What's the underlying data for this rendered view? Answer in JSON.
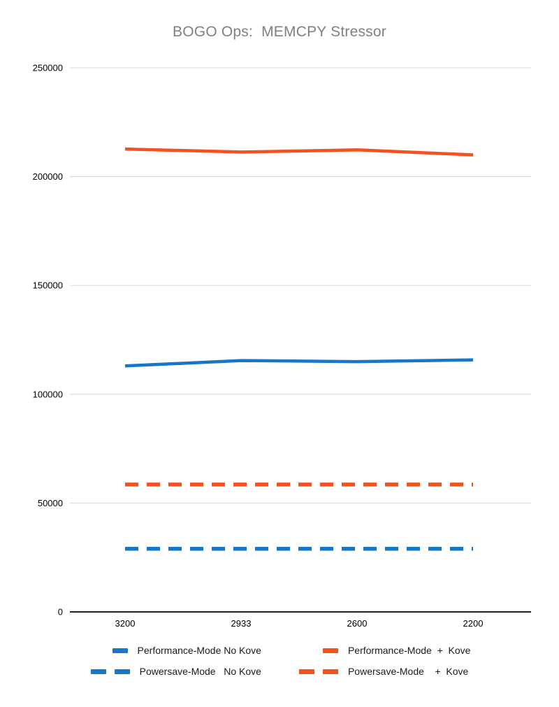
{
  "chart_data": {
    "type": "line",
    "title": "BOGO Ops:  MEMCPY Stressor",
    "title_color": "#808080",
    "xlabel": "",
    "ylabel": "",
    "categories": [
      "3200",
      "2933",
      "2600",
      "2200"
    ],
    "series": [
      {
        "name": "Performance-Mode No Kove",
        "color": "#1776C8",
        "style": "solid",
        "values": [
          113000,
          115500,
          115000,
          115800
        ]
      },
      {
        "name": "Performance-Mode  +  Kove",
        "color": "#F4511E",
        "style": "solid",
        "values": [
          212700,
          211300,
          212300,
          210000
        ]
      },
      {
        "name": "Powersave-Mode   No Kove",
        "color": "#1776C8",
        "style": "dashed",
        "values": [
          29000,
          29000,
          29000,
          29000
        ]
      },
      {
        "name": "Powersave-Mode    +  Kove",
        "color": "#F4511E",
        "style": "dashed",
        "values": [
          58500,
          58500,
          58500,
          58500
        ]
      }
    ],
    "ylim": [
      0,
      250000
    ],
    "ytick_step": 50000,
    "yticks": [
      "0",
      "50000",
      "100000",
      "150000",
      "200000",
      "250000"
    ],
    "grid": true,
    "legend_position": "bottom",
    "grid_color": "#d9d9d9",
    "axis_color": "#212121",
    "tick_label_color": "#000000",
    "background_color": "#ffffff"
  }
}
